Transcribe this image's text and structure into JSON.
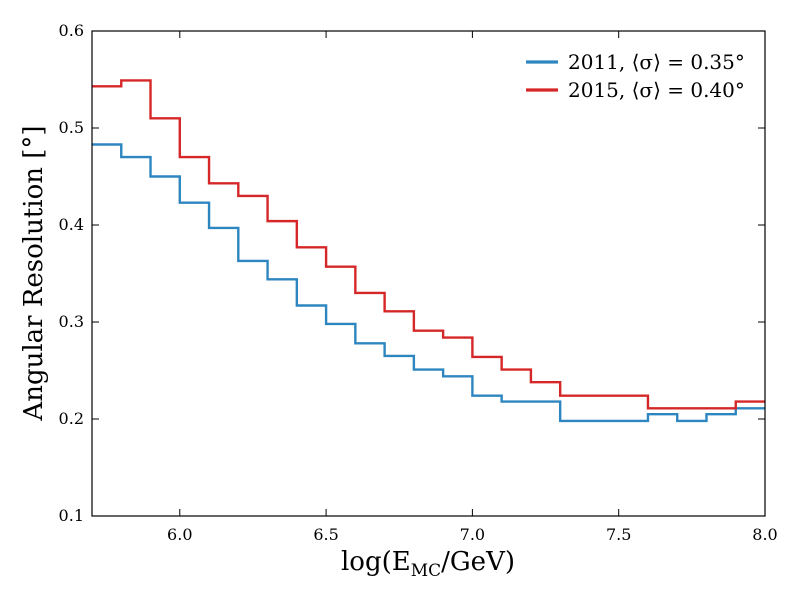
{
  "chart_data": {
    "type": "line",
    "drawstyle": "steps",
    "title": "",
    "xlabel": "log(E_MC/GeV)",
    "xlabel_main": "log(E",
    "xlabel_sub": "MC",
    "xlabel_tail": "/GeV)",
    "ylabel": "Angular Resolution [°]",
    "xlim": [
      5.7,
      8.0
    ],
    "ylim": [
      0.1,
      0.6
    ],
    "xticks": [
      6.0,
      6.5,
      7.0,
      7.5,
      8.0
    ],
    "xtick_labels": [
      "6.0",
      "6.5",
      "7.0",
      "7.5",
      "8.0"
    ],
    "yticks": [
      0.1,
      0.2,
      0.3,
      0.4,
      0.5,
      0.6
    ],
    "ytick_labels": [
      "0.1",
      "0.2",
      "0.3",
      "0.4",
      "0.5",
      "0.6"
    ],
    "grid": false,
    "legend_position": "top-right",
    "bin_edges": [
      5.7,
      5.8,
      5.9,
      6.0,
      6.1,
      6.2,
      6.3,
      6.4,
      6.5,
      6.6,
      6.7,
      6.8,
      6.9,
      7.0,
      7.1,
      7.2,
      7.3,
      7.4,
      7.5,
      7.6,
      7.7,
      7.8,
      7.9,
      8.0
    ],
    "series": [
      {
        "name": "2011, ⟨σ⟩ = 0.35°",
        "color": "#2e86c1",
        "values": [
          0.483,
          0.47,
          0.45,
          0.423,
          0.397,
          0.363,
          0.344,
          0.317,
          0.298,
          0.278,
          0.265,
          0.251,
          0.244,
          0.224,
          0.218,
          0.218,
          0.198,
          0.198,
          0.198,
          0.205,
          0.198,
          0.205,
          0.211
        ]
      },
      {
        "name": "2015, ⟨σ⟩ = 0.40°",
        "color": "#d62728",
        "values": [
          0.543,
          0.549,
          0.51,
          0.47,
          0.443,
          0.43,
          0.404,
          0.377,
          0.357,
          0.33,
          0.311,
          0.291,
          0.284,
          0.264,
          0.251,
          0.238,
          0.224,
          0.224,
          0.224,
          0.211,
          0.211,
          0.211,
          0.218
        ]
      }
    ]
  }
}
